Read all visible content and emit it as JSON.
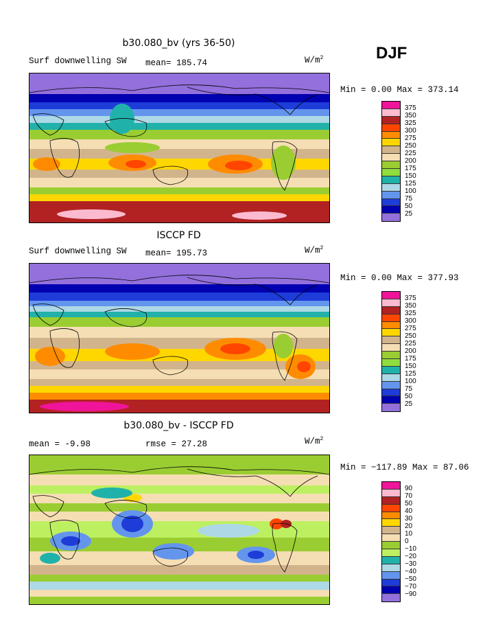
{
  "season": "DJF",
  "panels": [
    {
      "id": "model",
      "title": "b30.080_bv (yrs 36-50)",
      "variable": "Surf downwelling SW",
      "stat_text": "mean= 185.74",
      "unit": "W/m",
      "unit_exp": "2",
      "minmax": "Min =   0.00 Max = 373.14",
      "levels": [
        "375",
        "350",
        "325",
        "300",
        "275",
        "250",
        "225",
        "200",
        "175",
        "150",
        "125",
        "100",
        "75",
        "50",
        "25"
      ]
    },
    {
      "id": "obs",
      "title": "ISCCP FD",
      "variable": "Surf downwelling SW",
      "stat_text": "mean= 195.73",
      "unit": "W/m",
      "unit_exp": "2",
      "minmax": "Min =   0.00 Max = 377.93",
      "levels": [
        "375",
        "350",
        "325",
        "300",
        "275",
        "250",
        "225",
        "200",
        "175",
        "150",
        "125",
        "100",
        "75",
        "50",
        "25"
      ]
    },
    {
      "id": "diff",
      "title": "b30.080_bv - ISCCP FD",
      "variable": "",
      "stat_text": "mean =  -9.98",
      "stat_text2": "rmse =  27.28",
      "unit": "W/m",
      "unit_exp": "2",
      "minmax": "Min = −117.89 Max =  87.06",
      "levels": [
        "90",
        "70",
        "50",
        "40",
        "30",
        "20",
        "10",
        "0",
        "−10",
        "−20",
        "−30",
        "−40",
        "−50",
        "−70",
        "−90"
      ]
    }
  ],
  "colors": {
    "abs_scale": [
      "#f0149a",
      "#fbbad0",
      "#b22222",
      "#ff4500",
      "#ff8c00",
      "#ffd700",
      "#d2b48c",
      "#f5deb3",
      "#9acd32",
      "#8fdd3e",
      "#20b2aa",
      "#add8e6",
      "#6495ed",
      "#1e3cd8",
      "#0000b0",
      "#9370db"
    ],
    "diff_scale": [
      "#f0149a",
      "#fbbad0",
      "#b22222",
      "#ff4500",
      "#ff8c00",
      "#ffd700",
      "#d2b48c",
      "#f5deb3",
      "#9acd32",
      "#bdf061",
      "#20b2aa",
      "#add8e6",
      "#6495ed",
      "#1e3cd8",
      "#0000b0",
      "#9370db"
    ]
  },
  "chart_data": [
    {
      "type": "heatmap",
      "title": "b30.080_bv (yrs 36-50)",
      "subtitle": "Surf downwelling SW",
      "mean": 185.74,
      "min": 0.0,
      "max": 373.14,
      "unit": "W/m2",
      "contour_levels": [
        25,
        50,
        75,
        100,
        125,
        150,
        175,
        200,
        225,
        250,
        275,
        300,
        325,
        350,
        375
      ]
    },
    {
      "type": "heatmap",
      "title": "ISCCP FD",
      "subtitle": "Surf downwelling SW",
      "mean": 195.73,
      "min": 0.0,
      "max": 377.93,
      "unit": "W/m2",
      "contour_levels": [
        25,
        50,
        75,
        100,
        125,
        150,
        175,
        200,
        225,
        250,
        275,
        300,
        325,
        350,
        375
      ]
    },
    {
      "type": "heatmap",
      "title": "b30.080_bv - ISCCP FD",
      "mean": -9.98,
      "rmse": 27.28,
      "min": -117.89,
      "max": 87.06,
      "unit": "W/m2",
      "contour_levels": [
        -90,
        -70,
        -50,
        -40,
        -30,
        -20,
        -10,
        0,
        10,
        20,
        30,
        40,
        50,
        70,
        90
      ]
    }
  ]
}
